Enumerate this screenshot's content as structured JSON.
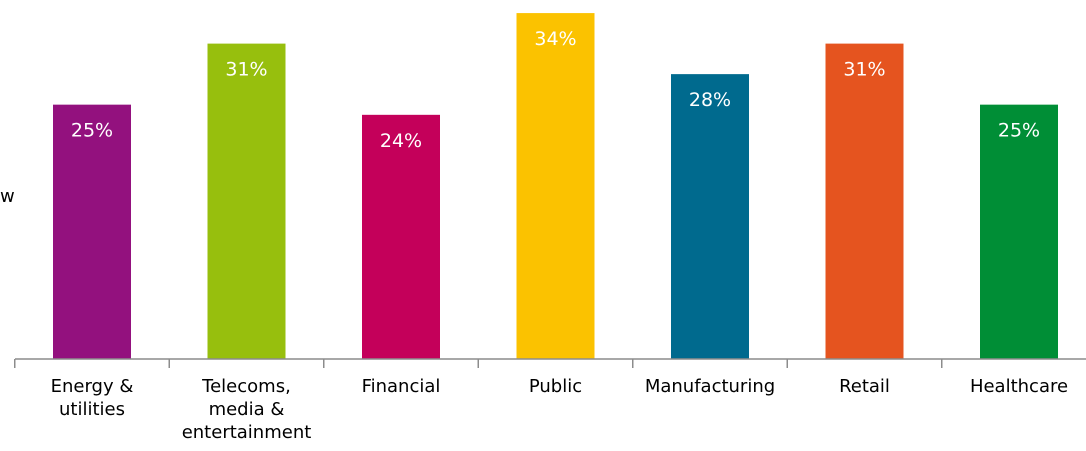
{
  "page_edge_fragment": "w",
  "chart_data": {
    "type": "bar",
    "categories": [
      "Energy & utilities",
      "Telecoms, media & entertainment",
      "Financial",
      "Public",
      "Manufacturing",
      "Retail",
      "Healthcare"
    ],
    "category_lines": [
      [
        "Energy &",
        "utilities"
      ],
      [
        "Telecoms,",
        "media &",
        "entertainment"
      ],
      [
        "Financial"
      ],
      [
        "Public"
      ],
      [
        "Manufacturing"
      ],
      [
        "Retail"
      ],
      [
        "Healthcare"
      ]
    ],
    "values": [
      25,
      31,
      24,
      34,
      28,
      31,
      25
    ],
    "data_labels": [
      "25%",
      "31%",
      "24%",
      "34%",
      "28%",
      "31%",
      "25%"
    ],
    "colors": [
      "#93117e",
      "#97bf0d",
      "#c4005a",
      "#fbc200",
      "#006a8e",
      "#e5541f",
      "#008e36"
    ],
    "axis_color": "#8c8c8c",
    "label_color": "#ffffff",
    "ylim": [
      0,
      34.5
    ],
    "grid": false,
    "legend": "none",
    "title": "",
    "xlabel": "",
    "ylabel": ""
  }
}
